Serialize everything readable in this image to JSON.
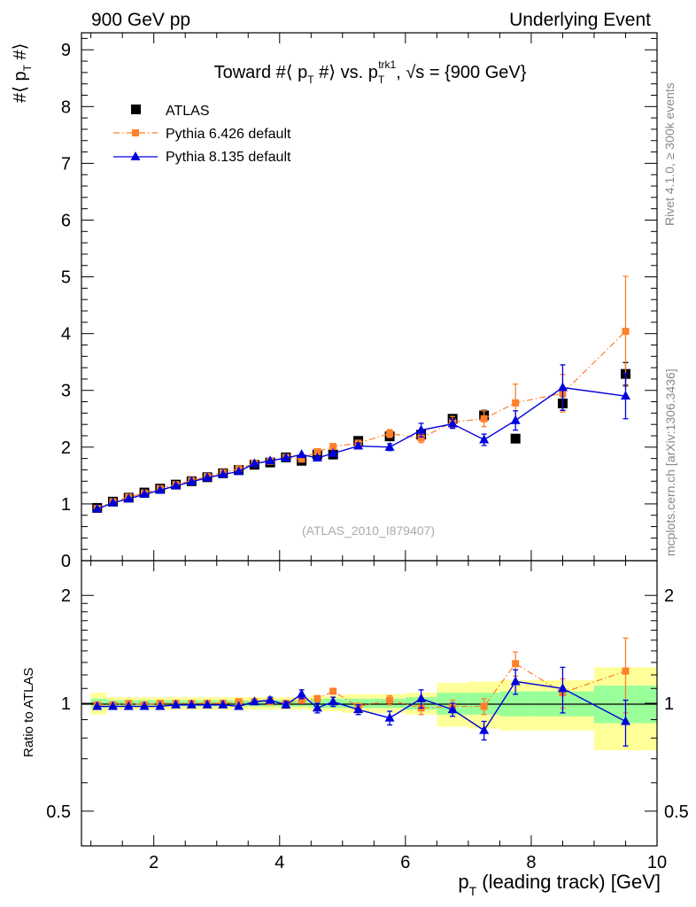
{
  "header": {
    "left_label": "900 GeV pp",
    "right_label": "Underlying Event"
  },
  "side_labels": {
    "rivet": "Rivet 4.1.0, ≥ 300k events",
    "mcplots": "mcplots.cern.ch [arXiv:1306.3436]"
  },
  "colors": {
    "atlas": "#000000",
    "pythia6": "#ff7f2a",
    "pythia8": "#0000dd",
    "band_inner": "#99ff99",
    "band_outer": "#ffff99"
  },
  "chart_data": [
    {
      "type": "scatter",
      "panel": "main",
      "title": "Toward #⟨ p_T #⟩ vs. p_T^trk1, √s = {900 GeV}",
      "ylabel": "#⟨ p_T #⟩",
      "xlim": [
        0.85,
        10.0
      ],
      "ylim": [
        0,
        9.3
      ],
      "yticks": [
        0,
        1,
        2,
        3,
        4,
        5,
        6,
        7,
        8,
        9
      ],
      "watermark": "(ATLAS_2010_I879407)",
      "legend_position": "top-left",
      "x": [
        1.1,
        1.35,
        1.6,
        1.85,
        2.1,
        2.35,
        2.6,
        2.85,
        3.1,
        3.35,
        3.6,
        3.85,
        4.1,
        4.35,
        4.6,
        4.85,
        5.25,
        5.75,
        6.25,
        6.75,
        7.25,
        7.75,
        8.5,
        9.5
      ],
      "series": [
        {
          "name": "ATLAS",
          "marker": "square",
          "values": [
            0.93,
            1.04,
            1.11,
            1.2,
            1.27,
            1.34,
            1.4,
            1.47,
            1.54,
            1.6,
            1.69,
            1.73,
            1.82,
            1.76,
            1.87,
            1.87,
            2.11,
            2.19,
            2.22,
            2.5,
            2.56,
            2.15,
            2.77,
            3.29
          ],
          "errors": [
            0.02,
            0.02,
            0.02,
            0.02,
            0.02,
            0.02,
            0.02,
            0.02,
            0.02,
            0.02,
            0.03,
            0.03,
            0.03,
            0.03,
            0.04,
            0.04,
            0.04,
            0.05,
            0.06,
            0.07,
            0.09,
            0.07,
            0.12,
            0.2
          ]
        },
        {
          "name": "Pythia 6.426 default",
          "marker": "square-small",
          "line": "dashdot",
          "values": [
            0.92,
            1.04,
            1.12,
            1.19,
            1.27,
            1.34,
            1.41,
            1.48,
            1.55,
            1.62,
            1.71,
            1.75,
            1.82,
            1.79,
            1.92,
            2.01,
            2.07,
            2.24,
            2.16,
            2.44,
            2.5,
            2.78,
            2.95,
            4.04
          ],
          "errors": [
            0.02,
            0.02,
            0.02,
            0.02,
            0.02,
            0.02,
            0.02,
            0.02,
            0.02,
            0.03,
            0.03,
            0.03,
            0.03,
            0.04,
            0.04,
            0.05,
            0.05,
            0.07,
            0.08,
            0.1,
            0.14,
            0.33,
            0.33,
            0.97
          ]
        },
        {
          "name": "Pythia 8.135 default",
          "marker": "triangle",
          "line": "solid",
          "values": [
            0.91,
            1.02,
            1.09,
            1.17,
            1.24,
            1.32,
            1.39,
            1.46,
            1.52,
            1.57,
            1.71,
            1.76,
            1.81,
            1.87,
            1.81,
            1.89,
            2.02,
            2.0,
            2.3,
            2.41,
            2.13,
            2.47,
            3.05,
            2.9
          ],
          "errors": [
            0.01,
            0.01,
            0.01,
            0.01,
            0.01,
            0.01,
            0.01,
            0.02,
            0.02,
            0.02,
            0.02,
            0.03,
            0.03,
            0.04,
            0.04,
            0.04,
            0.05,
            0.06,
            0.12,
            0.08,
            0.1,
            0.17,
            0.4,
            0.4
          ]
        }
      ]
    },
    {
      "type": "scatter",
      "panel": "ratio",
      "ylabel": "Ratio to ATLAS",
      "xlabel": "p_T (leading track) [GeV]",
      "xlim": [
        0.85,
        10.0
      ],
      "ylim": [
        0.4,
        2.5
      ],
      "yscale": "log",
      "yticks": [
        0.5,
        1,
        2
      ],
      "xticks": [
        2,
        4,
        6,
        8,
        10
      ],
      "reference_line": 1,
      "bands": {
        "edges": [
          1.0,
          1.25,
          1.5,
          1.75,
          2.0,
          2.25,
          2.5,
          2.75,
          3.0,
          3.25,
          3.5,
          3.75,
          4.0,
          4.25,
          4.5,
          4.75,
          5.0,
          5.5,
          6.0,
          6.5,
          7.0,
          7.5,
          8.0,
          9.0,
          10.0
        ],
        "inner": [
          0.03,
          0.02,
          0.02,
          0.02,
          0.02,
          0.02,
          0.02,
          0.02,
          0.02,
          0.02,
          0.02,
          0.02,
          0.02,
          0.02,
          0.03,
          0.03,
          0.03,
          0.03,
          0.04,
          0.07,
          0.07,
          0.08,
          0.08,
          0.12
        ],
        "outer": [
          0.07,
          0.04,
          0.04,
          0.04,
          0.04,
          0.04,
          0.04,
          0.04,
          0.04,
          0.04,
          0.04,
          0.04,
          0.04,
          0.04,
          0.05,
          0.05,
          0.06,
          0.06,
          0.07,
          0.14,
          0.15,
          0.16,
          0.16,
          0.26
        ]
      },
      "x": [
        1.1,
        1.35,
        1.6,
        1.85,
        2.1,
        2.35,
        2.6,
        2.85,
        3.1,
        3.35,
        3.6,
        3.85,
        4.1,
        4.35,
        4.6,
        4.85,
        5.25,
        5.75,
        6.25,
        6.75,
        7.25,
        7.75,
        8.5,
        9.5
      ],
      "series": [
        {
          "name": "Pythia 6.426 default",
          "marker": "square-small",
          "line": "dashdot",
          "values": [
            0.99,
            0.99,
            1.0,
            0.99,
            1.0,
            1.0,
            1.0,
            1.0,
            1.0,
            1.01,
            1.01,
            1.01,
            1.0,
            1.02,
            1.03,
            1.08,
            0.98,
            1.02,
            0.97,
            0.98,
            0.98,
            1.29,
            1.07,
            1.23
          ],
          "errors": [
            0.01,
            0.01,
            0.01,
            0.01,
            0.01,
            0.01,
            0.01,
            0.01,
            0.01,
            0.01,
            0.01,
            0.01,
            0.01,
            0.02,
            0.02,
            0.02,
            0.02,
            0.03,
            0.04,
            0.04,
            0.05,
            0.1,
            0.1,
            0.29
          ]
        },
        {
          "name": "Pythia 8.135 default",
          "marker": "triangle",
          "line": "solid",
          "values": [
            0.98,
            0.98,
            0.98,
            0.98,
            0.98,
            0.99,
            0.99,
            0.99,
            0.99,
            0.98,
            1.01,
            1.02,
            0.99,
            1.06,
            0.97,
            1.01,
            0.96,
            0.91,
            1.03,
            0.96,
            0.84,
            1.15,
            1.1,
            0.89
          ],
          "errors": [
            0.01,
            0.01,
            0.01,
            0.01,
            0.01,
            0.01,
            0.01,
            0.01,
            0.01,
            0.01,
            0.01,
            0.02,
            0.02,
            0.03,
            0.03,
            0.03,
            0.03,
            0.04,
            0.06,
            0.04,
            0.05,
            0.09,
            0.16,
            0.13
          ]
        }
      ]
    }
  ]
}
